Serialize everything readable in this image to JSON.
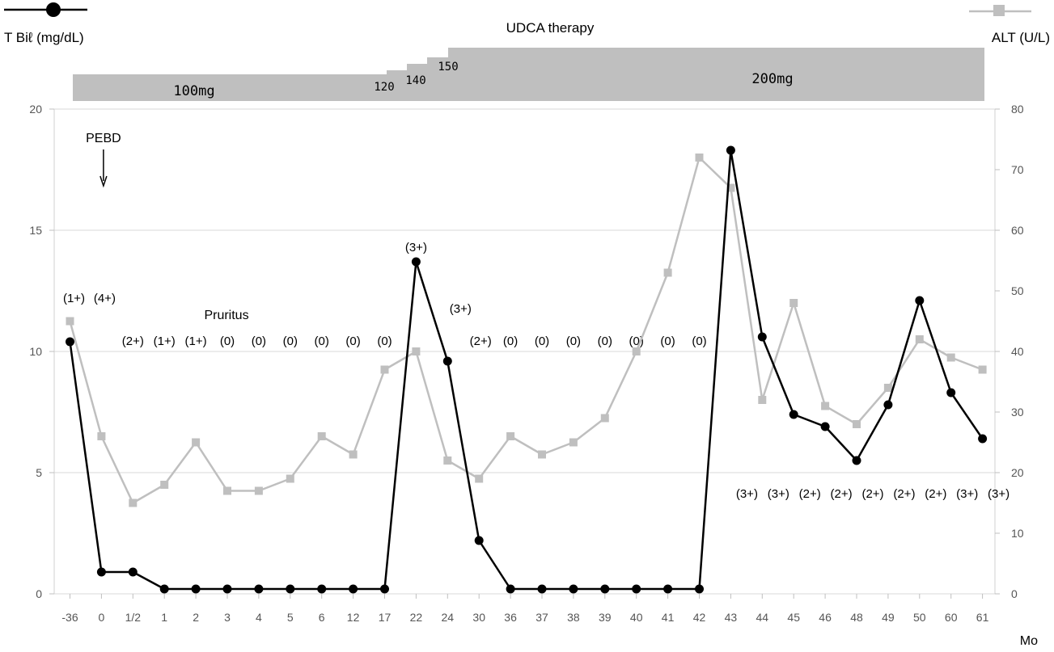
{
  "chart_data": {
    "type": "line",
    "title": "UDCA therapy",
    "xlabel": "Mo",
    "categories": [
      "-36",
      "0",
      "1/2",
      "1",
      "2",
      "3",
      "4",
      "5",
      "6",
      "12",
      "17",
      "22",
      "24",
      "30",
      "36",
      "37",
      "38",
      "39",
      "40",
      "41",
      "42",
      "43",
      "44",
      "45",
      "46",
      "48",
      "49",
      "50",
      "60",
      "61"
    ],
    "left_axis": {
      "label": "T Biℓ (mg/dL)",
      "ylim": [
        0,
        20
      ],
      "ticks": [
        "0",
        "5",
        "10",
        "15",
        "20"
      ]
    },
    "right_axis": {
      "label": "ALT (U/L)",
      "ylim": [
        0,
        80
      ],
      "ticks": [
        "0",
        "10",
        "20",
        "30",
        "40",
        "50",
        "60",
        "70",
        "80"
      ]
    },
    "grid": true,
    "series": [
      {
        "name": "T Biℓ (mg/dL)",
        "axis": "left",
        "color": "#000000",
        "marker": "circle",
        "values": [
          10.4,
          0.9,
          0.9,
          0.2,
          0.2,
          0.2,
          0.2,
          0.2,
          0.2,
          0.2,
          0.2,
          13.7,
          9.6,
          2.2,
          0.2,
          0.2,
          0.2,
          0.2,
          0.2,
          0.2,
          0.2,
          18.3,
          10.6,
          7.4,
          6.9,
          5.5,
          7.8,
          12.1,
          8.3,
          6.4
        ]
      },
      {
        "name": "ALT (U/L)",
        "axis": "right",
        "color": "#bfbfbf",
        "marker": "square",
        "values": [
          45,
          26,
          15,
          18,
          25,
          17,
          17,
          19,
          26,
          23,
          37,
          40,
          22,
          19,
          26,
          23,
          25,
          29,
          40,
          53,
          72,
          67,
          32,
          48,
          31,
          28,
          34,
          42,
          39,
          37
        ]
      }
    ],
    "legend": {
      "left": "T Biℓ (mg/dL)",
      "right": "ALT (U/L)"
    },
    "annotations": {
      "pebd": {
        "text": "PEBD",
        "category_index": 1
      },
      "pruritus_label": "Pruritus",
      "pruritus": [
        {
          "category_index": 0,
          "text": "(1+)",
          "level": "high"
        },
        {
          "category_index": 1,
          "text": "(4+)",
          "level": "high"
        },
        {
          "category_index": 2,
          "text": "(2+)",
          "level": "mid"
        },
        {
          "category_index": 3,
          "text": "(1+)",
          "level": "mid"
        },
        {
          "category_index": 4,
          "text": "(1+)",
          "level": "mid"
        },
        {
          "category_index": 5,
          "text": "(0)",
          "level": "mid"
        },
        {
          "category_index": 6,
          "text": "(0)",
          "level": "mid"
        },
        {
          "category_index": 7,
          "text": "(0)",
          "level": "mid"
        },
        {
          "category_index": 8,
          "text": "(0)",
          "level": "mid"
        },
        {
          "category_index": 9,
          "text": "(0)",
          "level": "mid"
        },
        {
          "category_index": 10,
          "text": "(0)",
          "level": "mid"
        },
        {
          "category_index": 11,
          "text": "(3+)",
          "level": "peak"
        },
        {
          "category_index": 12,
          "text": "(3+)",
          "level": "upper"
        },
        {
          "category_index": 13,
          "text": "(2+)",
          "level": "mid"
        },
        {
          "category_index": 14,
          "text": "(0)",
          "level": "mid"
        },
        {
          "category_index": 15,
          "text": "(0)",
          "level": "mid"
        },
        {
          "category_index": 16,
          "text": "(0)",
          "level": "mid"
        },
        {
          "category_index": 17,
          "text": "(0)",
          "level": "mid"
        },
        {
          "category_index": 18,
          "text": "(0)",
          "level": "mid"
        },
        {
          "category_index": 19,
          "text": "(0)",
          "level": "mid"
        },
        {
          "category_index": 20,
          "text": "(0)",
          "level": "mid"
        },
        {
          "category_index": 21,
          "text": "(3+)",
          "level": "low"
        },
        {
          "category_index": 22,
          "text": "(3+)",
          "level": "low"
        },
        {
          "category_index": 23,
          "text": "(2+)",
          "level": "low"
        },
        {
          "category_index": 24,
          "text": "(2+)",
          "level": "low"
        },
        {
          "category_index": 25,
          "text": "(2+)",
          "level": "low"
        },
        {
          "category_index": 26,
          "text": "(2+)",
          "level": "low"
        },
        {
          "category_index": 27,
          "text": "(2+)",
          "level": "low"
        },
        {
          "category_index": 28,
          "text": "(3+)",
          "level": "low"
        },
        {
          "category_index": 29,
          "text": "(3+)",
          "level": "low"
        }
      ],
      "udca_doses": [
        {
          "label": "100mg",
          "size": "big"
        },
        {
          "label": "120",
          "size": "small"
        },
        {
          "label": "140",
          "size": "small"
        },
        {
          "label": "150",
          "size": "small"
        },
        {
          "label": "200mg",
          "size": "big"
        }
      ]
    }
  }
}
